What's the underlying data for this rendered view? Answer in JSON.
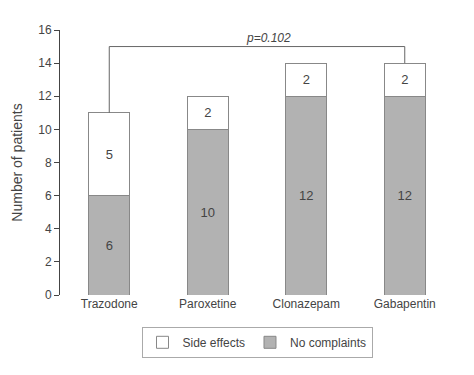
{
  "chart_data": {
    "type": "bar",
    "stacked": true,
    "categories": [
      "Trazodone",
      "Paroxetine",
      "Clonazepam",
      "Gabapentin"
    ],
    "series": [
      {
        "name": "No complaints",
        "color": "#b2b2b2",
        "values": [
          6,
          10,
          12,
          12
        ]
      },
      {
        "name": "Side effects",
        "color": "#ffffff",
        "values": [
          5,
          2,
          2,
          2
        ]
      }
    ],
    "ylabel": "Number of patients",
    "ylim": [
      0,
      16
    ],
    "yticks": [
      0,
      2,
      4,
      6,
      8,
      10,
      12,
      14,
      16
    ],
    "data_labels": true,
    "grid": false,
    "legend": "bottom",
    "annotations": [
      {
        "text": "p=0.102",
        "y": 15.0,
        "from": "Trazodone",
        "to": "Gabapentin"
      }
    ]
  }
}
